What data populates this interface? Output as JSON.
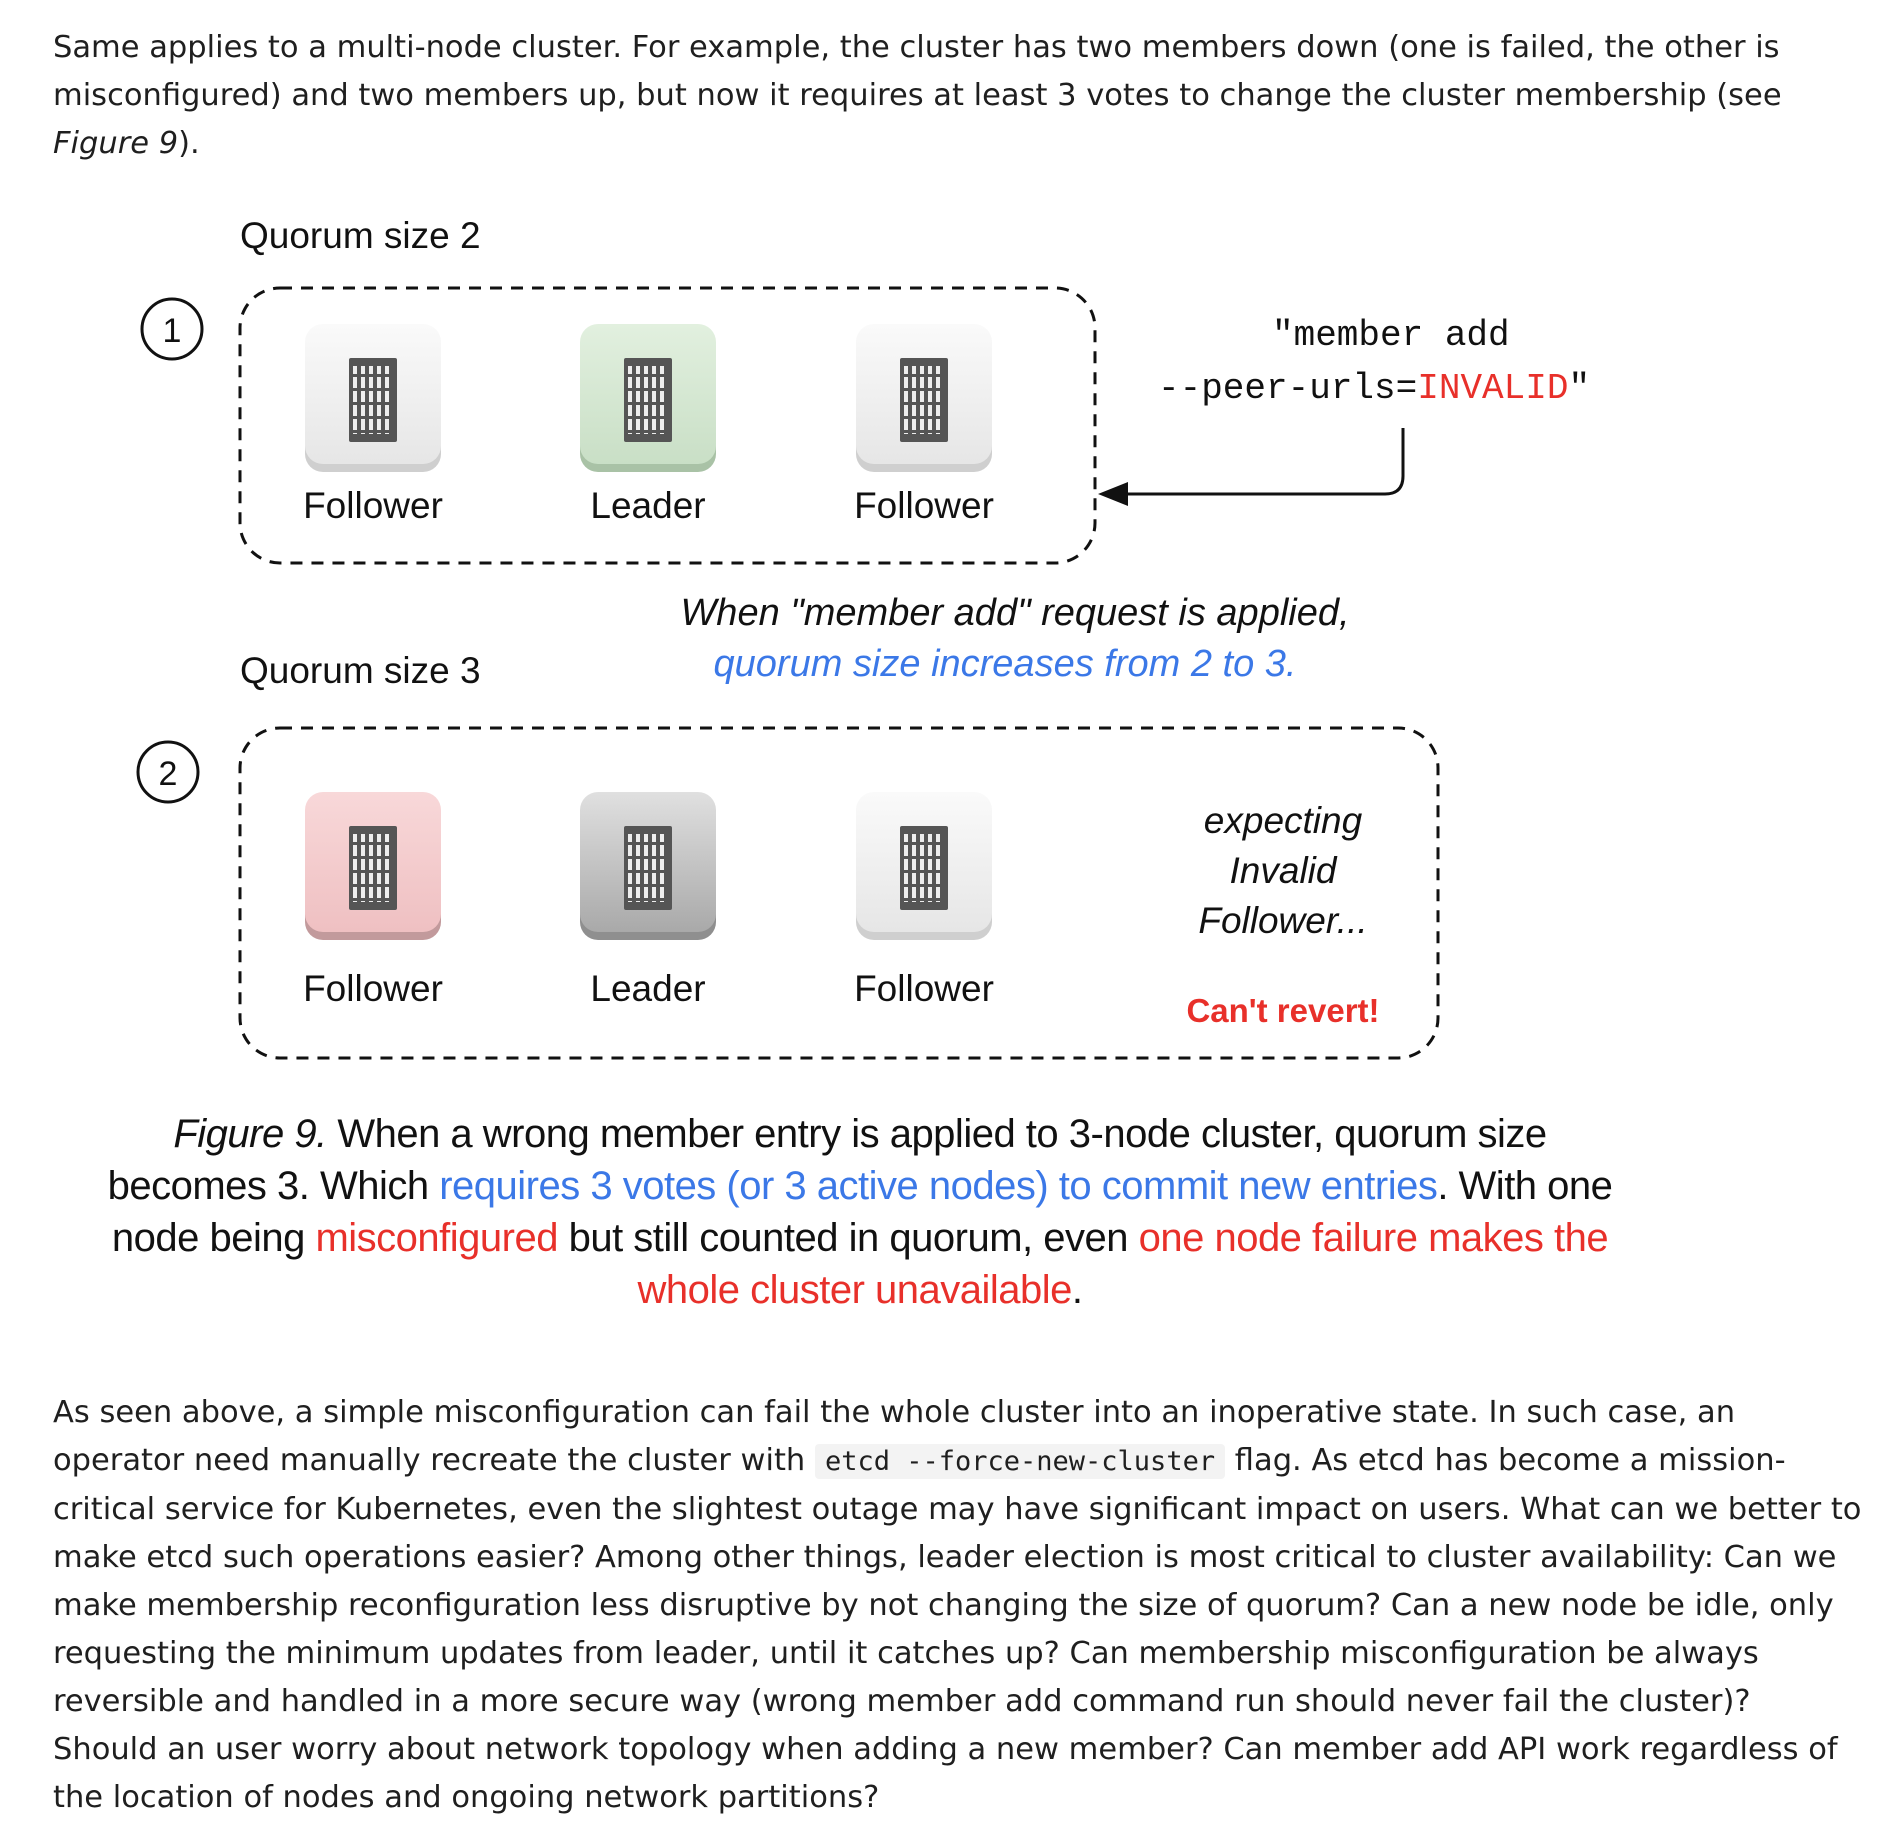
{
  "intro": {
    "text_before": "Same applies to a multi-node cluster. For example, the cluster has two members down (one is failed, the other is misconfigured) and two members up, but now it requires at least 3 votes to change the cluster membership (see ",
    "figure_ref": "Figure 9",
    "text_after": ")."
  },
  "figure": {
    "step1": {
      "number": "1",
      "quorum_label": "Quorum size 2",
      "nodes": [
        {
          "role": "Follower",
          "state": "normal"
        },
        {
          "role": "Leader",
          "state": "leader"
        },
        {
          "role": "Follower",
          "state": "normal"
        }
      ],
      "command_line1": "\"member add",
      "command_line2_prefix": "--peer-urls=",
      "command_line2_value": "INVALID",
      "command_line2_suffix": "\""
    },
    "transition": {
      "line1": "When \"member add\" request is applied,",
      "line2": "quorum size increases from 2 to 3."
    },
    "step2": {
      "number": "2",
      "quorum_label": "Quorum size 3",
      "nodes": [
        {
          "role": "Follower",
          "state": "failed"
        },
        {
          "role": "Leader",
          "state": "leader"
        },
        {
          "role": "Follower",
          "state": "normal"
        }
      ],
      "expecting_lines": [
        "expecting",
        "Invalid",
        "Follower..."
      ],
      "cant_revert": "Can't revert!"
    },
    "colors": {
      "normal_tile": "#f2f2f2",
      "leader_green_tile": "#d8ead6",
      "failed_tile": "#f5cfd0",
      "leader_gray_tile": "#c4c4c4",
      "accent_blue": "#3b78e7",
      "accent_red": "#e8302a"
    }
  },
  "caption": {
    "fig_label": "Figure 9.",
    "part1": " When a wrong member entry is applied to 3-node cluster, quorum size becomes 3. Which ",
    "part2_blue": "requires 3 votes (or 3 active nodes) to commit new entries",
    "part3": ". With one node being ",
    "part4_red": "misconfigured",
    "part5": " but still counted in quorum, even ",
    "part6_red": "one node failure makes the whole cluster unavailable",
    "part7": "."
  },
  "outro": {
    "text_before": "As seen above, a simple misconfiguration can fail the whole cluster into an inoperative state. In such case, an operator need manually recreate the cluster with ",
    "code": "etcd --force-new-cluster",
    "text_after": " flag. As etcd has become a mission-critical service for Kubernetes, even the slightest outage may have significant impact on users. What can we better to make etcd such operations easier? Among other things, leader election is most critical to cluster availability: Can we make membership reconfiguration less disruptive by not changing the size of quorum? Can a new node be idle, only requesting the minimum updates from leader, until it catches up? Can membership misconfiguration be always reversible and handled in a more secure way (wrong member add command run should never fail the cluster)? Should an user worry about network topology when adding a new member? Can member add API work regardless of the location of nodes and ongoing network partitions?"
  }
}
